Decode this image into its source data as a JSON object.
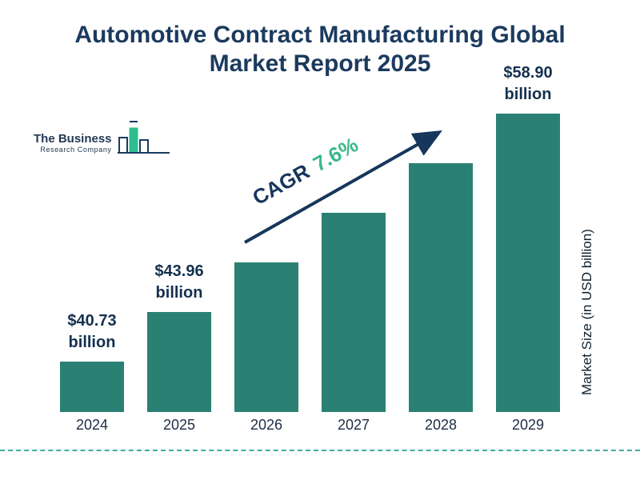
{
  "title": "Automotive Contract Manufacturing Global Market Report 2025",
  "logo": {
    "name_line1": "The Business",
    "name_line2": "Research Company"
  },
  "annotation": {
    "cagr_label": "CAGR",
    "cagr_value": "7.6%"
  },
  "chart_data": {
    "type": "bar",
    "title": "Automotive Contract Manufacturing Global Market Report 2025",
    "ylabel": "Market Size (in USD billion)",
    "categories": [
      "2024",
      "2025",
      "2026",
      "2027",
      "2028",
      "2029"
    ],
    "values": [
      40.73,
      43.96,
      47.3,
      50.9,
      54.77,
      58.9
    ],
    "value_labels": [
      "$40.73 billion",
      "$43.96 billion",
      null,
      null,
      null,
      "$58.90 billion"
    ],
    "cagr_percent": 7.6,
    "bar_color": "#2a8173",
    "legend": "none",
    "gridlines": false
  },
  "colors": {
    "title_text": "#1b3a5e",
    "bar": "#2a8173",
    "cagr_green": "#3cb98a",
    "arrow": "#16365c",
    "divider": "#3fae9c"
  }
}
